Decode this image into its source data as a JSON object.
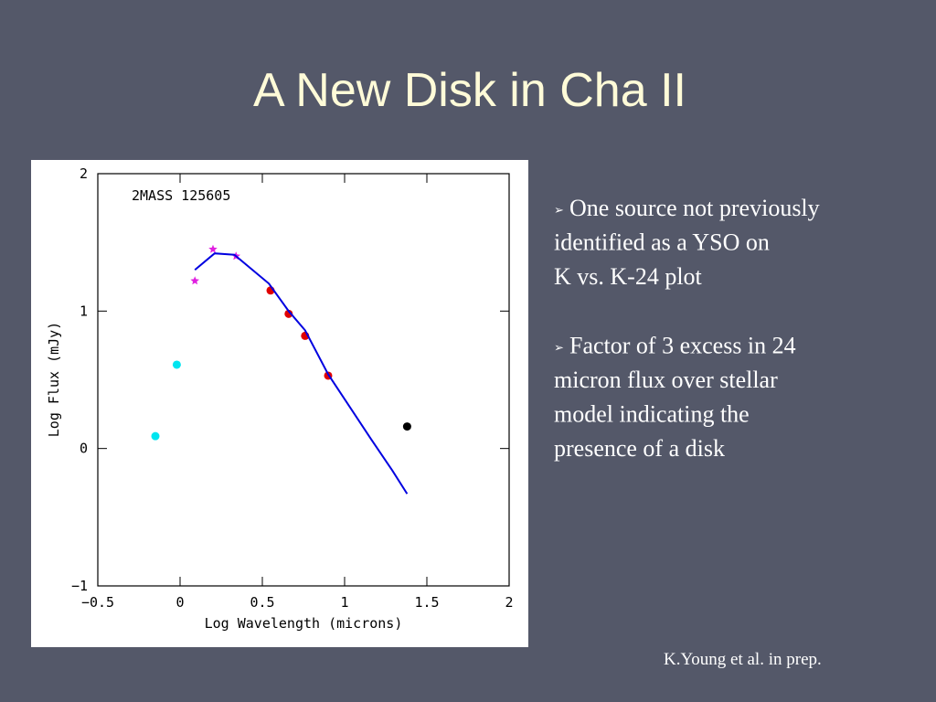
{
  "slide": {
    "title": "A New Disk in Cha II",
    "bullets": [
      [
        "One source not previously",
        "identified as a YSO on",
        " K vs. K-24 plot"
      ],
      [
        "Factor of 3 excess in 24",
        "micron flux over stellar",
        "model indicating the",
        "presence of a disk"
      ]
    ],
    "credit": "K.Young et al. in prep."
  },
  "chart_data": {
    "type": "scatter",
    "annotation": "2MASS 125605",
    "x_label": "Log Wavelength (microns)",
    "y_label": "Log Flux (mJy)",
    "xlim": [
      -0.5,
      2
    ],
    "ylim": [
      -1,
      2
    ],
    "xticks": [
      {
        "value": -0.5,
        "label": "−0.5"
      },
      0,
      0.5,
      1,
      1.5,
      2
    ],
    "yticks": [
      {
        "value": -1,
        "label": "−1"
      },
      0,
      1,
      2
    ],
    "series": [
      {
        "color": "#00e5f0",
        "marker": "circle",
        "x": [
          -0.15,
          -0.02
        ],
        "values": [
          0.09,
          0.61
        ]
      },
      {
        "color": "#e020e0",
        "marker": "star",
        "x": [
          0.09,
          0.2,
          0.34
        ],
        "values": [
          1.22,
          1.45,
          1.4
        ]
      },
      {
        "color": "#e00000",
        "marker": "circle",
        "x": [
          0.55,
          0.66,
          0.76,
          0.9
        ],
        "values": [
          1.15,
          0.98,
          0.82,
          0.53
        ]
      },
      {
        "color": "#000000",
        "marker": "circle",
        "x": [
          1.38
        ],
        "values": [
          0.16
        ]
      },
      {
        "color": "#0000e0",
        "marker": "line",
        "x": [
          0.09,
          0.21,
          0.33,
          0.54,
          0.66,
          0.76,
          0.9,
          1.16,
          1.29,
          1.38
        ],
        "values": [
          1.3,
          1.42,
          1.41,
          1.2,
          1.0,
          0.86,
          0.54,
          0.07,
          -0.16,
          -0.33
        ]
      }
    ]
  }
}
